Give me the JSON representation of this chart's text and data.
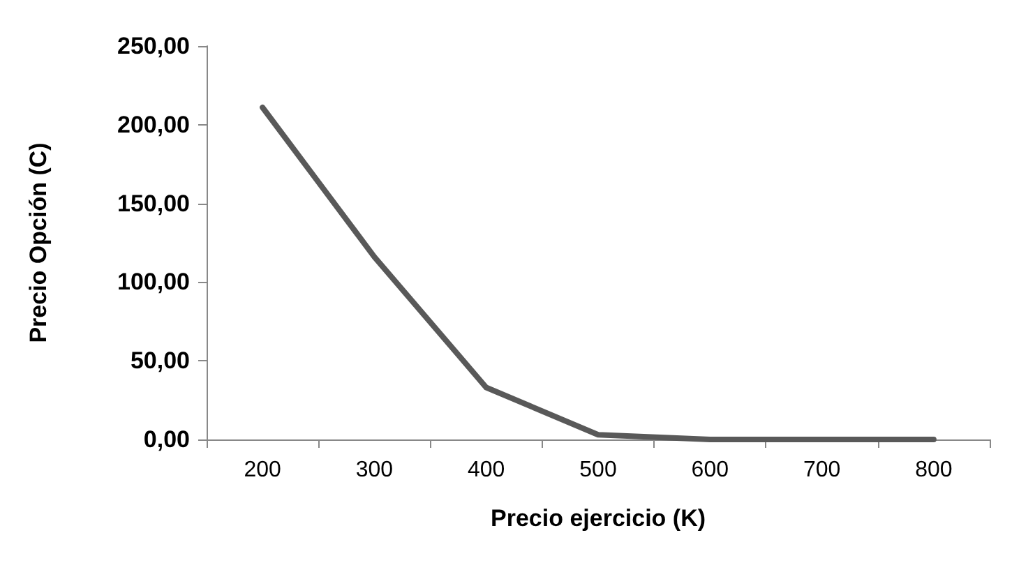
{
  "chart_data": {
    "type": "line",
    "xlabel": "Precio ejercicio (K)",
    "ylabel": "Precio Opción (C)",
    "categories": [
      "200",
      "300",
      "400",
      "500",
      "600",
      "700",
      "800"
    ],
    "series": [
      {
        "color": "#595959",
        "values": [
          211,
          116,
          33,
          3,
          0,
          0,
          0
        ]
      }
    ],
    "ylim": [
      0,
      250
    ],
    "yticks": [
      {
        "value": 0,
        "label": "0,00"
      },
      {
        "value": 50,
        "label": "50,00"
      },
      {
        "value": 100,
        "label": "100,00"
      },
      {
        "value": 150,
        "label": "150,00"
      },
      {
        "value": 200,
        "label": "200,00"
      },
      {
        "value": 250,
        "label": "250,00"
      }
    ],
    "grid": false,
    "marker": "none",
    "line_style": "solid"
  }
}
